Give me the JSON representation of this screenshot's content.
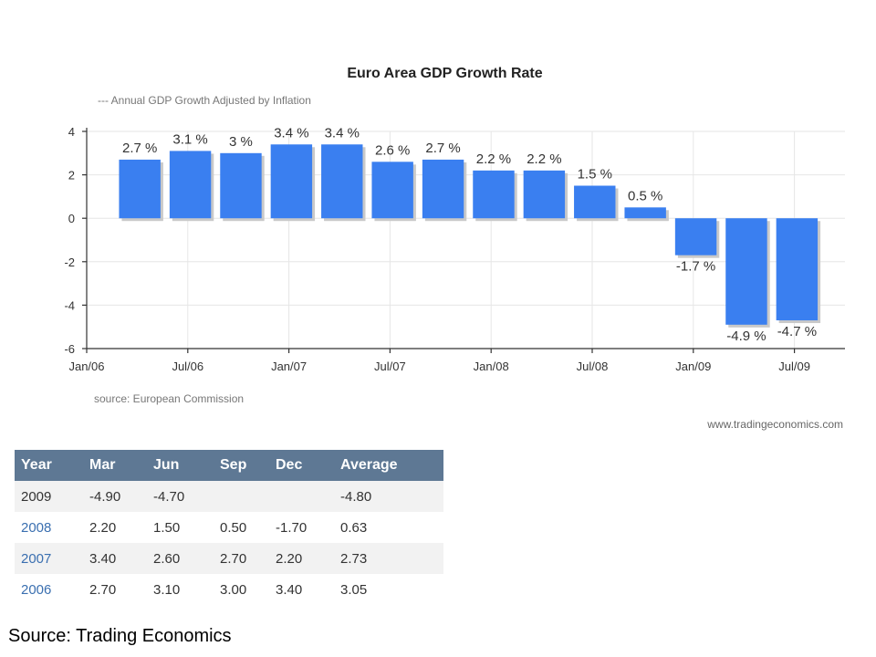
{
  "chart_data": {
    "type": "bar",
    "title": "Euro Area GDP Growth Rate",
    "subtitle": "---  Annual GDP Growth Adjusted by Inflation",
    "source": "source: European Commission",
    "credit": "www.tradingeconomics.com",
    "categories": [
      "Mar/06",
      "Jun/06",
      "Sep/06",
      "Dec/06",
      "Mar/07",
      "Jun/07",
      "Sep/07",
      "Dec/07",
      "Mar/08",
      "Jun/08",
      "Sep/08",
      "Dec/08",
      "Mar/09",
      "Jun/09"
    ],
    "values": [
      2.7,
      3.1,
      3.0,
      3.4,
      3.4,
      2.6,
      2.7,
      2.2,
      2.2,
      1.5,
      0.5,
      -1.7,
      -4.9,
      -4.7
    ],
    "data_labels": [
      "2.7 %",
      "3.1 %",
      "3 %",
      "3.4 %",
      "3.4 %",
      "2.6 %",
      "2.7 %",
      "2.2 %",
      "2.2 %",
      "1.5 %",
      "0.5 %",
      "-1.7 %",
      "-4.9 %",
      "-4.7 %"
    ],
    "x_tick_labels": [
      "Jan/06",
      "Jul/06",
      "Jan/07",
      "Jul/07",
      "Jan/08",
      "Jul/08",
      "Jan/09",
      "Jul/09"
    ],
    "y_ticks": [
      4,
      2,
      0,
      -2,
      -4,
      -6
    ],
    "ylim": [
      -6,
      4
    ],
    "xlabel": "",
    "ylabel": "",
    "grid": true,
    "bar_color": "#3a7ff0"
  },
  "table": {
    "headers": [
      "Year",
      "Mar",
      "Jun",
      "Sep",
      "Dec",
      "Average"
    ],
    "rows": [
      [
        "2009",
        "-4.90",
        "-4.70",
        "",
        "",
        "-4.80"
      ],
      [
        "2008",
        "2.20",
        "1.50",
        "0.50",
        "-1.70",
        "0.63"
      ],
      [
        "2007",
        "3.40",
        "2.60",
        "2.70",
        "2.20",
        "2.73"
      ],
      [
        "2006",
        "2.70",
        "3.10",
        "3.00",
        "3.40",
        "3.05"
      ]
    ]
  },
  "footer": "Source: Trading Economics"
}
